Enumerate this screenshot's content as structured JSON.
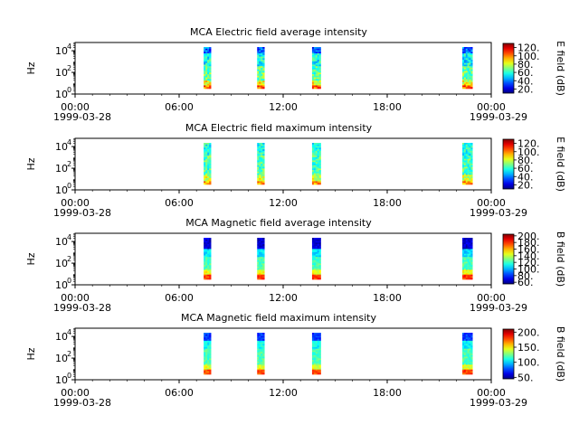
{
  "chart_data": [
    {
      "type": "heatmap",
      "title": "MCA  Electric field average intensity",
      "ylabel": "Hz",
      "yscale": "log",
      "yticks": [
        {
          "base": "10",
          "exp": "0"
        },
        {
          "base": "10",
          "exp": "2"
        },
        {
          "base": "10",
          "exp": "4"
        }
      ],
      "xticks": [
        {
          "label": "00:00",
          "date": "1999-03-28"
        },
        {
          "label": "06:00",
          "date": ""
        },
        {
          "label": "12:00",
          "date": ""
        },
        {
          "label": "18:00",
          "date": ""
        },
        {
          "label": "00:00",
          "date": "1999-03-29"
        }
      ],
      "xlim": [
        "1999-03-28T00:00",
        "1999-03-29T00:00"
      ],
      "segments": [
        {
          "start": "07:25",
          "end": "07:50"
        },
        {
          "start": "10:30",
          "end": "10:55"
        },
        {
          "start": "13:40",
          "end": "14:10"
        },
        {
          "start": "22:20",
          "end": "22:55"
        }
      ],
      "colorbar_label": "E field (dB)",
      "colorbar_ticks": [
        "20.",
        "40.",
        "60.",
        "80.",
        "100.",
        "120."
      ],
      "colorbar_range": [
        10,
        130
      ],
      "profile": "E-avg"
    },
    {
      "type": "heatmap",
      "title": "MCA  Electric field maximum intensity",
      "ylabel": "Hz",
      "yscale": "log",
      "yticks": [
        {
          "base": "10",
          "exp": "0"
        },
        {
          "base": "10",
          "exp": "2"
        },
        {
          "base": "10",
          "exp": "4"
        }
      ],
      "xticks": [
        {
          "label": "00:00",
          "date": "1999-03-28"
        },
        {
          "label": "06:00",
          "date": ""
        },
        {
          "label": "12:00",
          "date": ""
        },
        {
          "label": "18:00",
          "date": ""
        },
        {
          "label": "00:00",
          "date": "1999-03-29"
        }
      ],
      "xlim": [
        "1999-03-28T00:00",
        "1999-03-29T00:00"
      ],
      "segments": [
        {
          "start": "07:25",
          "end": "07:50"
        },
        {
          "start": "10:30",
          "end": "10:55"
        },
        {
          "start": "13:40",
          "end": "14:10"
        },
        {
          "start": "22:20",
          "end": "22:55"
        }
      ],
      "colorbar_label": "E field (dB)",
      "colorbar_ticks": [
        "20.",
        "40.",
        "60.",
        "80.",
        "100.",
        "120."
      ],
      "colorbar_range": [
        10,
        130
      ],
      "profile": "E-max"
    },
    {
      "type": "heatmap",
      "title": "MCA  Magnetic field average intensity",
      "ylabel": "Hz",
      "yscale": "log",
      "yticks": [
        {
          "base": "10",
          "exp": "0"
        },
        {
          "base": "10",
          "exp": "2"
        },
        {
          "base": "10",
          "exp": "4"
        }
      ],
      "xticks": [
        {
          "label": "00:00",
          "date": "1999-03-28"
        },
        {
          "label": "06:00",
          "date": ""
        },
        {
          "label": "12:00",
          "date": ""
        },
        {
          "label": "18:00",
          "date": ""
        },
        {
          "label": "00:00",
          "date": "1999-03-29"
        }
      ],
      "xlim": [
        "1999-03-28T00:00",
        "1999-03-29T00:00"
      ],
      "segments": [
        {
          "start": "07:25",
          "end": "07:50"
        },
        {
          "start": "10:30",
          "end": "10:55"
        },
        {
          "start": "13:40",
          "end": "14:10"
        },
        {
          "start": "22:20",
          "end": "22:55"
        }
      ],
      "colorbar_label": "B field (dB)",
      "colorbar_ticks": [
        "60.",
        "80.",
        "100.",
        "120.",
        "140.",
        "160.",
        "180.",
        "200."
      ],
      "colorbar_range": [
        55,
        205
      ],
      "profile": "B-avg"
    },
    {
      "type": "heatmap",
      "title": "MCA  Magnetic field maximum intensity",
      "ylabel": "Hz",
      "yscale": "log",
      "yticks": [
        {
          "base": "10",
          "exp": "0"
        },
        {
          "base": "10",
          "exp": "2"
        },
        {
          "base": "10",
          "exp": "4"
        }
      ],
      "xticks": [
        {
          "label": "00:00",
          "date": "1999-03-28"
        },
        {
          "label": "06:00",
          "date": ""
        },
        {
          "label": "12:00",
          "date": ""
        },
        {
          "label": "18:00",
          "date": ""
        },
        {
          "label": "00:00",
          "date": "1999-03-29"
        }
      ],
      "xlim": [
        "1999-03-28T00:00",
        "1999-03-29T00:00"
      ],
      "segments": [
        {
          "start": "07:25",
          "end": "07:50"
        },
        {
          "start": "10:30",
          "end": "10:55"
        },
        {
          "start": "13:40",
          "end": "14:10"
        },
        {
          "start": "22:20",
          "end": "22:55"
        }
      ],
      "colorbar_label": "B field (dB)",
      "colorbar_ticks": [
        "50.",
        "100.",
        "150.",
        "200."
      ],
      "colorbar_range": [
        45,
        210
      ],
      "profile": "B-max"
    }
  ]
}
